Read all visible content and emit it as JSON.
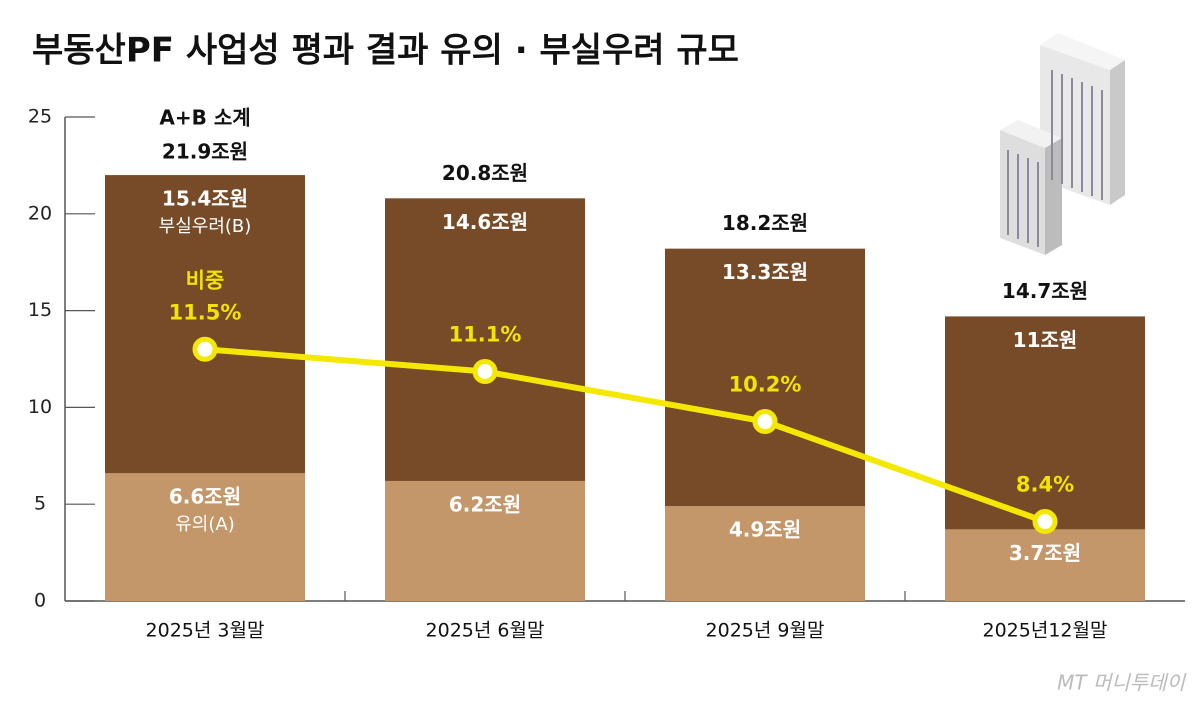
{
  "chart_data": {
    "type": "stacked-bar-line",
    "title": "부동산PF 사업성 평과 결과 유의 · 부실우려 규모",
    "categories": [
      "2025년 3월말",
      "2025년 6월말",
      "2025년 9월말",
      "2025년12월말"
    ],
    "series": [
      {
        "name": "유의(A)",
        "color": "#c3976a",
        "values": [
          6.6,
          6.2,
          4.9,
          3.7
        ],
        "value_labels": [
          "6.6조원",
          "6.2조원",
          "4.9조원",
          "3.7조원"
        ]
      },
      {
        "name": "부실우려(B)",
        "color": "#774b28",
        "values": [
          15.4,
          14.6,
          13.3,
          11
        ],
        "value_labels": [
          "15.4조원",
          "14.6조원",
          "13.3조원",
          "11조원"
        ]
      },
      {
        "name": "비중",
        "type": "line",
        "axis": "y2",
        "color": "#f5e800",
        "values": [
          11.5,
          11.1,
          10.2,
          8.4
        ],
        "value_labels": [
          "11.5%",
          "11.1%",
          "10.2%",
          "8.4%"
        ]
      }
    ],
    "totals": {
      "name": "A+B 소계",
      "values": [
        21.9,
        20.8,
        18.2,
        14.7
      ],
      "value_labels": [
        "21.9조원",
        "20.8조원",
        "18.2조원",
        "14.7조원"
      ]
    },
    "ylim": [
      0,
      25
    ],
    "yticks": [
      0,
      5,
      10,
      15,
      20,
      25
    ],
    "y2lim": [
      6.97,
      15.68
    ],
    "source": "MT 머니투데이"
  }
}
